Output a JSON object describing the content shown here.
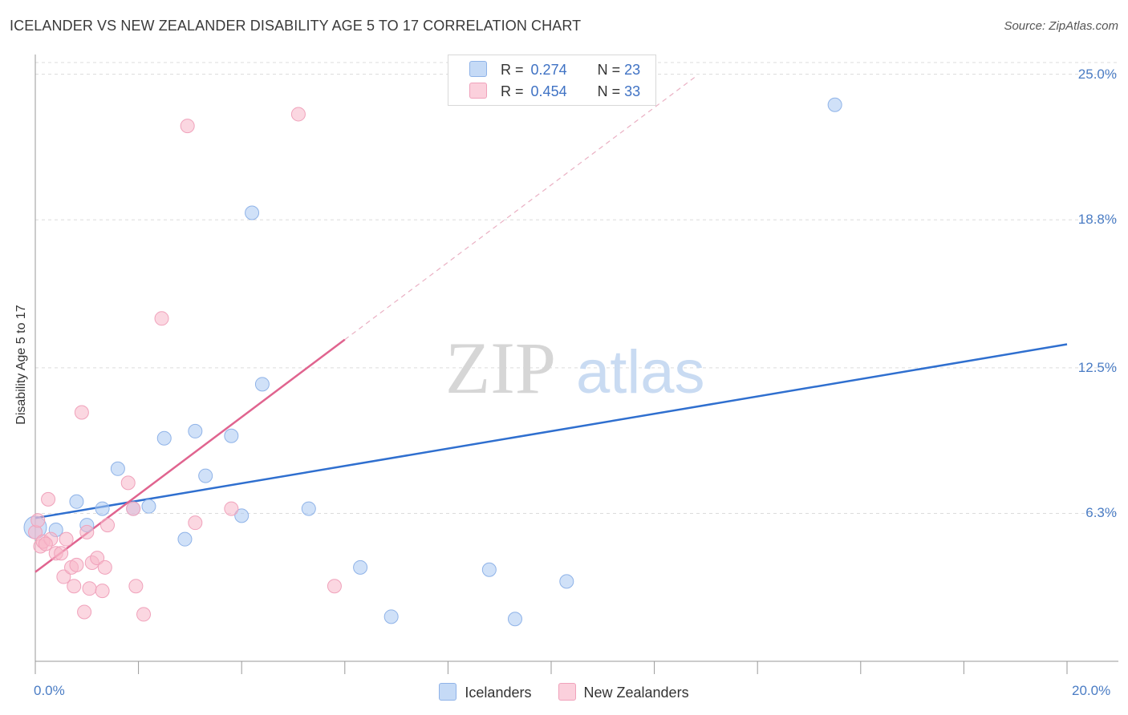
{
  "title": "ICELANDER VS NEW ZEALANDER DISABILITY AGE 5 TO 17 CORRELATION CHART",
  "source": "Source: ZipAtlas.com",
  "watermark": {
    "zip": "ZIP",
    "atlas": "atlas"
  },
  "legend": {
    "r_label": "R =",
    "n_label": "N =",
    "rows": [
      {
        "r": "0.274",
        "n": "23",
        "color": "#a9c8f2"
      },
      {
        "r": "0.454",
        "n": "33",
        "color": "#f7b6c8"
      }
    ]
  },
  "bottom_legend": [
    "Icelanders",
    "New Zealanders"
  ],
  "chart_data": {
    "type": "scatter",
    "title": "ICELANDER VS NEW ZEALANDER DISABILITY AGE 5 TO 17 CORRELATION CHART",
    "xlabel": "",
    "ylabel": "Disability Age 5 to 17",
    "xlim": [
      0,
      20
    ],
    "ylim": [
      0,
      25.5
    ],
    "x_tick_labels": [
      "0.0%",
      "20.0%"
    ],
    "y_ticks": [
      6.3,
      12.5,
      18.8,
      25.0
    ],
    "y_tick_labels": [
      "6.3%",
      "12.5%",
      "18.8%",
      "25.0%"
    ],
    "grid": true,
    "series": [
      {
        "name": "Icelanders",
        "color": "#a9c8f2",
        "line_color": "#2f6fcf",
        "trend": {
          "x": [
            0,
            20
          ],
          "y": [
            6.1,
            13.5
          ]
        },
        "points": [
          {
            "x": 0.0,
            "y": 5.7
          },
          {
            "x": 0.4,
            "y": 5.6
          },
          {
            "x": 0.8,
            "y": 6.8
          },
          {
            "x": 1.0,
            "y": 5.8
          },
          {
            "x": 1.3,
            "y": 6.5
          },
          {
            "x": 1.6,
            "y": 8.2
          },
          {
            "x": 1.9,
            "y": 6.5
          },
          {
            "x": 2.2,
            "y": 6.6
          },
          {
            "x": 2.5,
            "y": 9.5
          },
          {
            "x": 2.9,
            "y": 5.2
          },
          {
            "x": 3.1,
            "y": 9.8
          },
          {
            "x": 3.3,
            "y": 7.9
          },
          {
            "x": 3.8,
            "y": 9.6
          },
          {
            "x": 4.0,
            "y": 6.2
          },
          {
            "x": 4.2,
            "y": 19.1
          },
          {
            "x": 4.4,
            "y": 11.8
          },
          {
            "x": 5.3,
            "y": 6.5
          },
          {
            "x": 6.3,
            "y": 4.0
          },
          {
            "x": 6.9,
            "y": 1.9
          },
          {
            "x": 8.8,
            "y": 3.9
          },
          {
            "x": 9.3,
            "y": 1.8
          },
          {
            "x": 10.3,
            "y": 3.4
          },
          {
            "x": 15.5,
            "y": 23.7
          }
        ]
      },
      {
        "name": "New Zealanders",
        "color": "#f7b6c8",
        "line_color": "#e0648f",
        "trend": {
          "x": [
            0,
            6.0
          ],
          "y": [
            3.8,
            13.7
          ]
        },
        "trend_extension": {
          "x": [
            6.0,
            12.8
          ],
          "y": [
            13.7,
            24.9
          ]
        },
        "points": [
          {
            "x": 0.0,
            "y": 5.5
          },
          {
            "x": 0.1,
            "y": 4.9
          },
          {
            "x": 0.15,
            "y": 5.1
          },
          {
            "x": 0.25,
            "y": 6.9
          },
          {
            "x": 0.3,
            "y": 5.2
          },
          {
            "x": 0.4,
            "y": 4.6
          },
          {
            "x": 0.5,
            "y": 4.6
          },
          {
            "x": 0.55,
            "y": 3.6
          },
          {
            "x": 0.6,
            "y": 5.2
          },
          {
            "x": 0.7,
            "y": 4.0
          },
          {
            "x": 0.75,
            "y": 3.2
          },
          {
            "x": 0.8,
            "y": 4.1
          },
          {
            "x": 0.9,
            "y": 10.6
          },
          {
            "x": 0.95,
            "y": 2.1
          },
          {
            "x": 1.0,
            "y": 5.5
          },
          {
            "x": 1.05,
            "y": 3.1
          },
          {
            "x": 1.1,
            "y": 4.2
          },
          {
            "x": 1.2,
            "y": 4.4
          },
          {
            "x": 1.3,
            "y": 3.0
          },
          {
            "x": 1.35,
            "y": 4.0
          },
          {
            "x": 1.4,
            "y": 5.8
          },
          {
            "x": 1.8,
            "y": 7.6
          },
          {
            "x": 1.9,
            "y": 6.5
          },
          {
            "x": 1.95,
            "y": 3.2
          },
          {
            "x": 2.1,
            "y": 2.0
          },
          {
            "x": 2.45,
            "y": 14.6
          },
          {
            "x": 2.95,
            "y": 22.8
          },
          {
            "x": 3.1,
            "y": 5.9
          },
          {
            "x": 3.8,
            "y": 6.5
          },
          {
            "x": 5.1,
            "y": 23.3
          },
          {
            "x": 5.8,
            "y": 3.2
          },
          {
            "x": 0.05,
            "y": 6.0
          },
          {
            "x": 0.2,
            "y": 5.0
          }
        ]
      }
    ]
  }
}
